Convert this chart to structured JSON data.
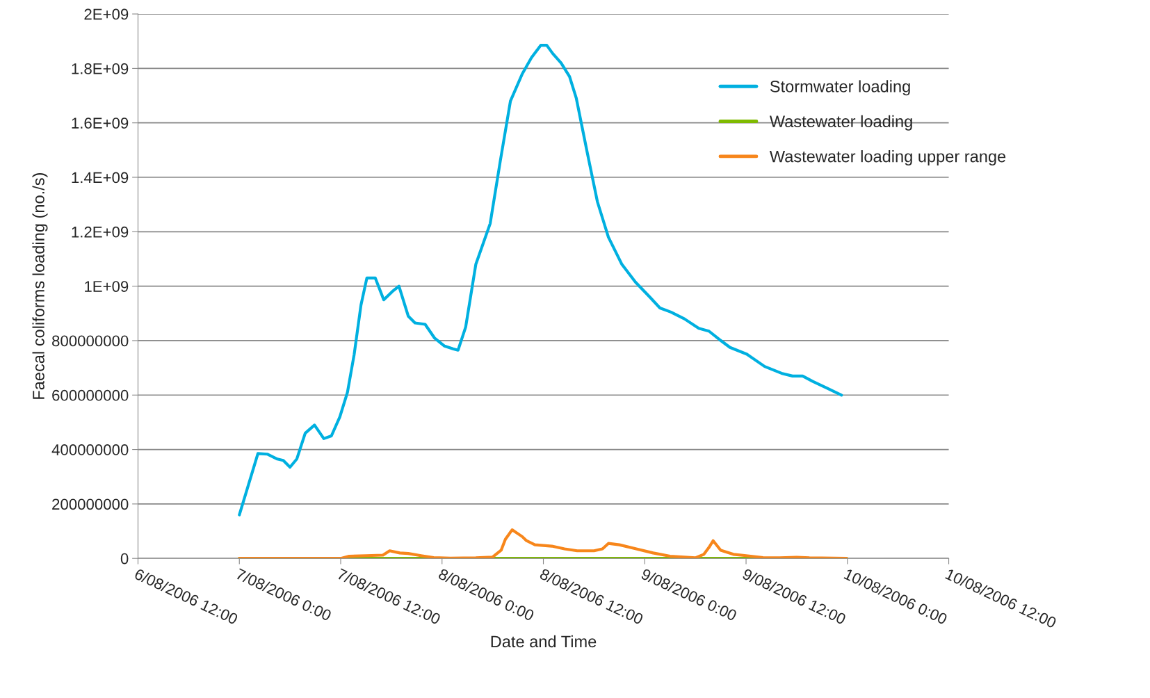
{
  "chart_data": {
    "type": "line",
    "xlabel": "Date and Time",
    "ylabel": "Faecal coliforms loading (no./s)",
    "xlim": [
      "2006-08-06T12:00",
      "2006-08-10T12:00"
    ],
    "xticks": [
      {
        "value": "2006-08-06T12:00",
        "label": "6/08/2006 12:00"
      },
      {
        "value": "2006-08-07T00:00",
        "label": "7/08/2006 0:00"
      },
      {
        "value": "2006-08-07T12:00",
        "label": "7/08/2006 12:00"
      },
      {
        "value": "2006-08-08T00:00",
        "label": "8/08/2006 0:00"
      },
      {
        "value": "2006-08-08T12:00",
        "label": "8/08/2006 12:00"
      },
      {
        "value": "2006-08-09T00:00",
        "label": "9/08/2006 0:00"
      },
      {
        "value": "2006-08-09T12:00",
        "label": "9/08/2006 12:00"
      },
      {
        "value": "2006-08-10T00:00",
        "label": "10/08/2006 0:00"
      },
      {
        "value": "2006-08-10T12:00",
        "label": "10/08/2006 12:00"
      }
    ],
    "ylim": [
      0,
      2000000000
    ],
    "yticks": [
      0,
      200000000,
      400000000,
      600000000,
      800000000,
      {
        "value": 1000000000,
        "label": "1E+09"
      },
      {
        "value": 1200000000,
        "label": "1.2E+09"
      },
      {
        "value": 1400000000,
        "label": "1.4E+09"
      },
      {
        "value": 1600000000,
        "label": "1.6E+09"
      },
      {
        "value": 1800000000,
        "label": "1.8E+09"
      },
      {
        "value": 2000000000,
        "label": "2E+09"
      }
    ],
    "grid": "y",
    "legend": "right",
    "line_style": "solid",
    "marker": "none",
    "series": [
      {
        "name": "Stormwater loading",
        "color": "#00b0e0",
        "x": [
          "2006-08-07T00:00",
          "2006-08-07T02:12",
          "2006-08-07T03:18",
          "2006-08-07T04:30",
          "2006-08-07T05:12",
          "2006-08-07T06:00",
          "2006-08-07T06:48",
          "2006-08-07T07:48",
          "2006-08-07T08:54",
          "2006-08-07T10:00",
          "2006-08-07T10:54",
          "2006-08-07T11:54",
          "2006-08-07T12:48",
          "2006-08-07T13:36",
          "2006-08-07T14:24",
          "2006-08-07T15:06",
          "2006-08-07T16:06",
          "2006-08-07T17:06",
          "2006-08-07T18:06",
          "2006-08-07T18:54",
          "2006-08-07T20:00",
          "2006-08-07T20:48",
          "2006-08-07T22:00",
          "2006-08-07T23:06",
          "2006-08-08T00:18",
          "2006-08-08T01:18",
          "2006-08-08T01:54",
          "2006-08-08T02:48",
          "2006-08-08T04:00",
          "2006-08-08T05:42",
          "2006-08-08T06:54",
          "2006-08-08T08:06",
          "2006-08-08T09:30",
          "2006-08-08T10:36",
          "2006-08-08T11:42",
          "2006-08-08T12:24",
          "2006-08-08T13:06",
          "2006-08-08T14:06",
          "2006-08-08T15:06",
          "2006-08-08T15:54",
          "2006-08-08T17:12",
          "2006-08-08T18:24",
          "2006-08-08T19:42",
          "2006-08-08T21:18",
          "2006-08-08T22:54",
          "2006-08-09T00:36",
          "2006-08-09T01:48",
          "2006-08-09T03:06",
          "2006-08-09T04:42",
          "2006-08-09T06:24",
          "2006-08-09T07:36",
          "2006-08-09T08:48",
          "2006-08-09T10:06",
          "2006-08-09T12:06",
          "2006-08-09T14:12",
          "2006-08-09T16:12",
          "2006-08-09T17:30",
          "2006-08-09T18:42",
          "2006-08-09T19:54",
          "2006-08-09T21:36",
          "2006-08-09T23:18"
        ],
        "values": [
          160000000,
          385000000,
          383000000,
          365000000,
          360000000,
          335000000,
          365000000,
          460000000,
          490000000,
          440000000,
          450000000,
          520000000,
          610000000,
          750000000,
          930000000,
          1030000000,
          1030000000,
          950000000,
          980000000,
          1000000000,
          890000000,
          865000000,
          860000000,
          810000000,
          780000000,
          770000000,
          765000000,
          850000000,
          1080000000,
          1230000000,
          1460000000,
          1680000000,
          1780000000,
          1840000000,
          1885000000,
          1885000000,
          1855000000,
          1820000000,
          1770000000,
          1690000000,
          1490000000,
          1310000000,
          1180000000,
          1080000000,
          1015000000,
          960000000,
          920000000,
          905000000,
          880000000,
          845000000,
          835000000,
          805000000,
          775000000,
          750000000,
          705000000,
          680000000,
          670000000,
          670000000,
          650000000,
          625000000,
          600000000
        ]
      },
      {
        "name": "Wastewater loading",
        "color": "#7fba00",
        "x": [
          "2006-08-07T00:00",
          "2006-08-09T23:54"
        ],
        "values": [
          0,
          0
        ]
      },
      {
        "name": "Wastewater loading upper range",
        "color": "#f7861b",
        "x": [
          "2006-08-07T00:00",
          "2006-08-07T12:00",
          "2006-08-07T13:00",
          "2006-08-07T15:00",
          "2006-08-07T17:00",
          "2006-08-07T17:48",
          "2006-08-07T19:00",
          "2006-08-07T20:00",
          "2006-08-07T21:30",
          "2006-08-07T23:00",
          "2006-08-08T01:00",
          "2006-08-08T04:00",
          "2006-08-08T06:00",
          "2006-08-08T07:00",
          "2006-08-08T07:30",
          "2006-08-08T08:18",
          "2006-08-08T09:30",
          "2006-08-08T10:00",
          "2006-08-08T11:00",
          "2006-08-08T13:00",
          "2006-08-08T14:30",
          "2006-08-08T16:00",
          "2006-08-08T18:00",
          "2006-08-08T19:00",
          "2006-08-08T19:42",
          "2006-08-08T21:00",
          "2006-08-08T23:00",
          "2006-08-09T01:00",
          "2006-08-09T03:00",
          "2006-08-09T06:00",
          "2006-08-09T07:00",
          "2006-08-09T07:36",
          "2006-08-09T08:06",
          "2006-08-09T09:00",
          "2006-08-09T10:30",
          "2006-08-09T12:00",
          "2006-08-09T14:00",
          "2006-08-09T16:00",
          "2006-08-09T18:00",
          "2006-08-09T19:30",
          "2006-08-09T23:54"
        ],
        "values": [
          0,
          0,
          8000000,
          10000000,
          12000000,
          28000000,
          20000000,
          18000000,
          10000000,
          3000000,
          1000000,
          2000000,
          5000000,
          30000000,
          70000000,
          105000000,
          80000000,
          65000000,
          50000000,
          45000000,
          35000000,
          28000000,
          28000000,
          35000000,
          55000000,
          50000000,
          35000000,
          20000000,
          8000000,
          2000000,
          15000000,
          40000000,
          65000000,
          30000000,
          15000000,
          10000000,
          3000000,
          2000000,
          4000000,
          2000000,
          0
        ]
      }
    ]
  }
}
